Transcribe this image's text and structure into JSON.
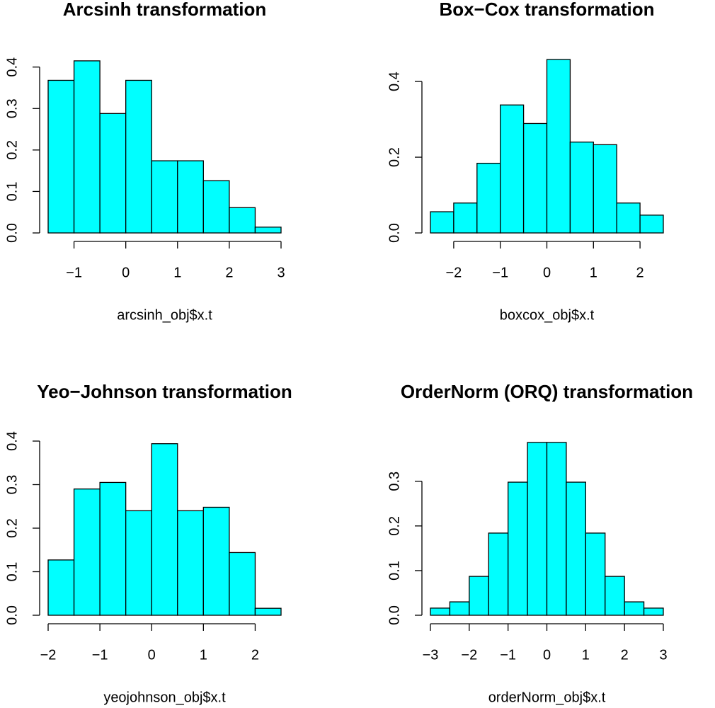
{
  "chart_data": [
    {
      "type": "histogram",
      "title": "Arcsinh transformation",
      "xlabel": "arcsinh_obj$x.t",
      "color": "#00ffff",
      "bins": [
        -1.5,
        -1,
        -0.5,
        0,
        0.5,
        1,
        1.5,
        2,
        2.5,
        3
      ],
      "values": [
        0.368,
        0.415,
        0.288,
        0.368,
        0.174,
        0.174,
        0.126,
        0.061,
        0.014
      ],
      "xlim": [
        -1.5,
        3
      ],
      "ylim": [
        0,
        0.42
      ],
      "xticks": [
        {
          "value": -1,
          "label": "−1"
        },
        0,
        1,
        2,
        3
      ],
      "yticks": [
        {
          "value": 0,
          "label": "0.0"
        },
        0.1,
        0.2,
        0.3,
        0.4
      ]
    },
    {
      "type": "histogram",
      "title": "Box−Cox transformation",
      "xlabel": "boxcox_obj$x.t",
      "color": "#00ffff",
      "bins": [
        -2.5,
        -2,
        -1.5,
        -1,
        -0.5,
        0,
        0.5,
        1,
        1.5,
        2,
        2.5
      ],
      "values": [
        0.056,
        0.079,
        0.184,
        0.338,
        0.289,
        0.458,
        0.24,
        0.233,
        0.079,
        0.047
      ],
      "xlim": [
        -2.5,
        2.5
      ],
      "ylim": [
        0,
        0.46
      ],
      "xticks": [
        {
          "value": -2,
          "label": "−2"
        },
        {
          "value": -1,
          "label": "−1"
        },
        0,
        1,
        2
      ],
      "yticks": [
        {
          "value": 0,
          "label": "0.0"
        },
        0.2,
        0.4
      ]
    },
    {
      "type": "histogram",
      "title": "Yeo−Johnson transformation",
      "xlabel": "yeojohnson_obj$x.t",
      "color": "#00ffff",
      "bins": [
        -2,
        -1.5,
        -1,
        -0.5,
        0,
        0.5,
        1,
        1.5,
        2,
        2.5
      ],
      "values": [
        0.127,
        0.29,
        0.305,
        0.24,
        0.394,
        0.24,
        0.248,
        0.144,
        0.016
      ],
      "xlim": [
        -2,
        2.5
      ],
      "ylim": [
        0,
        0.4
      ],
      "xticks": [
        {
          "value": -2,
          "label": "−2"
        },
        {
          "value": -1,
          "label": "−1"
        },
        0,
        1,
        2
      ],
      "yticks": [
        {
          "value": 0,
          "label": "0.0"
        },
        0.1,
        0.2,
        0.3,
        0.4
      ]
    },
    {
      "type": "histogram",
      "title": "OrderNorm (ORQ) transformation",
      "xlabel": "orderNorm_obj$x.t",
      "color": "#00ffff",
      "bins": [
        -3,
        -2.5,
        -2,
        -1.5,
        -1,
        -0.5,
        0,
        0.5,
        1,
        1.5,
        2,
        2.5,
        3
      ],
      "values": [
        0.016,
        0.03,
        0.087,
        0.184,
        0.298,
        0.387,
        0.387,
        0.298,
        0.184,
        0.087,
        0.03,
        0.016
      ],
      "xlim": [
        -3,
        3
      ],
      "ylim": [
        0,
        0.39
      ],
      "xticks": [
        {
          "value": -3,
          "label": "−3"
        },
        {
          "value": -2,
          "label": "−2"
        },
        {
          "value": -1,
          "label": "−1"
        },
        0,
        1,
        2,
        3
      ],
      "yticks": [
        {
          "value": 0,
          "label": "0.0"
        },
        0.1,
        0.2,
        0.3
      ]
    }
  ]
}
